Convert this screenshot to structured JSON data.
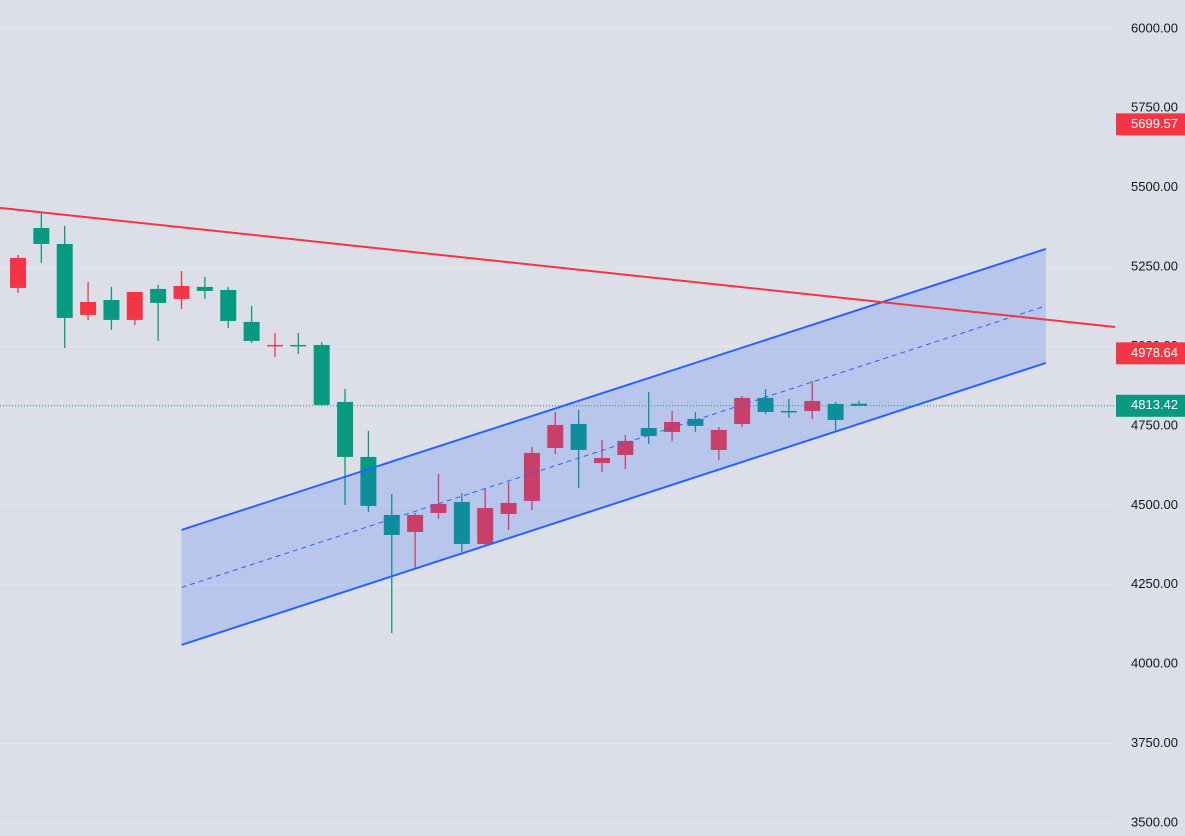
{
  "chart_data": {
    "type": "candlestick",
    "ylim": [
      3459,
      6091
    ],
    "yticks": [
      {
        "value": 3500,
        "label": "3500.00"
      },
      {
        "value": 3750,
        "label": "3750.00"
      },
      {
        "value": 4000,
        "label": "4000.00"
      },
      {
        "value": 4250,
        "label": "4250.00"
      },
      {
        "value": 4500,
        "label": "4500.00"
      },
      {
        "value": 4750,
        "label": "4750.00"
      },
      {
        "value": 5000,
        "label": "5000.00"
      },
      {
        "value": 5250,
        "label": "5250.00"
      },
      {
        "value": 5500,
        "label": "5500.00"
      },
      {
        "value": 5750,
        "label": "5750.00"
      },
      {
        "value": 6000,
        "label": "6000.00"
      }
    ],
    "grid": true,
    "up_color": "#f23645",
    "down_color": "#089981",
    "open": [
      5184.5,
      5373.4,
      5323.0,
      5099.5,
      5146.7,
      5083.8,
      5181.4,
      5149.9,
      5187.7,
      5178.2,
      5077.5,
      5001.9,
      5005.0,
      5005.0,
      4825.6,
      4652.4,
      4469.8,
      4416.3,
      4476.1,
      4510.7,
      4378.5,
      4472.9,
      4513.9,
      4680.7,
      4756.3,
      4633.5,
      4658.7,
      4743.7,
      4731.1,
      4772.0,
      4674.4,
      4756.3,
      4838.2,
      4797.2,
      4797.2,
      4819.3,
      4820
    ],
    "high": [
      5288.4,
      5420.7,
      5379.7,
      5203.4,
      5187.7,
      5171.9,
      5194.0,
      5238.1,
      5219.2,
      5187.7,
      5127.8,
      5042.8,
      5042.8,
      5014.5,
      4866.5,
      4734.3,
      4535.9,
      4476.1,
      4598.8,
      4539.0,
      4551.6,
      4573.7,
      4683.9,
      4794.1,
      4800.4,
      4705.9,
      4721.7,
      4857.1,
      4797.2,
      4794.1,
      4746.8,
      4844.5,
      4866.5,
      4835.0,
      4891.7,
      4825.6,
      4828.7
    ],
    "low": [
      5168.8,
      5263.2,
      4995.6,
      5083.8,
      5052.3,
      5068.0,
      5017.6,
      5118.4,
      5149.9,
      5058.6,
      5011.3,
      4967.3,
      4976.7,
      4813.0,
      4501.3,
      4479.2,
      4098.2,
      4302.9,
      4457.2,
      4353.3,
      4375.3,
      4422.6,
      4485.5,
      4661.8,
      4554.8,
      4605.1,
      4614.6,
      4693.3,
      4702.8,
      4731.1,
      4642.9,
      4746.8,
      4787.8,
      4775.2,
      4772.0,
      4734.3,
      4813.0
    ],
    "close": [
      5279.0,
      5323.0,
      5090.0,
      5140.4,
      5083.8,
      5171.9,
      5137.3,
      5190.8,
      5175.1,
      5080.6,
      5017.6,
      5005.0,
      5001.9,
      4816.1,
      4652.4,
      4498.1,
      4406.8,
      4469.8,
      4504.4,
      4378.5,
      4491.8,
      4507.6,
      4665.0,
      4753.1,
      4674.4,
      4649.2,
      4702.8,
      4718.5,
      4762.6,
      4750.0,
      4737.4,
      4838.2,
      4794.1,
      4794.1,
      4828.7,
      4768.9,
      4813.42
    ],
    "trend_lines": [
      {
        "color": "#f23645",
        "x": [
          -0.77,
          46.96
        ],
        "y": [
          5436.4,
          5061.6
        ]
      }
    ],
    "channel": {
      "color": "#2962ff",
      "upper": {
        "x": [
          7,
          44
        ],
        "y": [
          4422.6,
          5307.3
        ]
      },
      "mid": {
        "x": [
          7,
          44
        ],
        "y": [
          4241.6,
          5127.9
        ]
      },
      "lower": {
        "x": [
          7,
          44
        ],
        "y": [
          4060.5,
          4948.4
        ]
      }
    },
    "price_labels": [
      {
        "value": 5699.57,
        "color": "#f23645",
        "dotted_line": false
      },
      {
        "value": 4978.64,
        "color": "#f23645",
        "dotted_line": false
      },
      {
        "value": 4813.42,
        "color": "#089981",
        "dotted_line": true
      }
    ]
  }
}
